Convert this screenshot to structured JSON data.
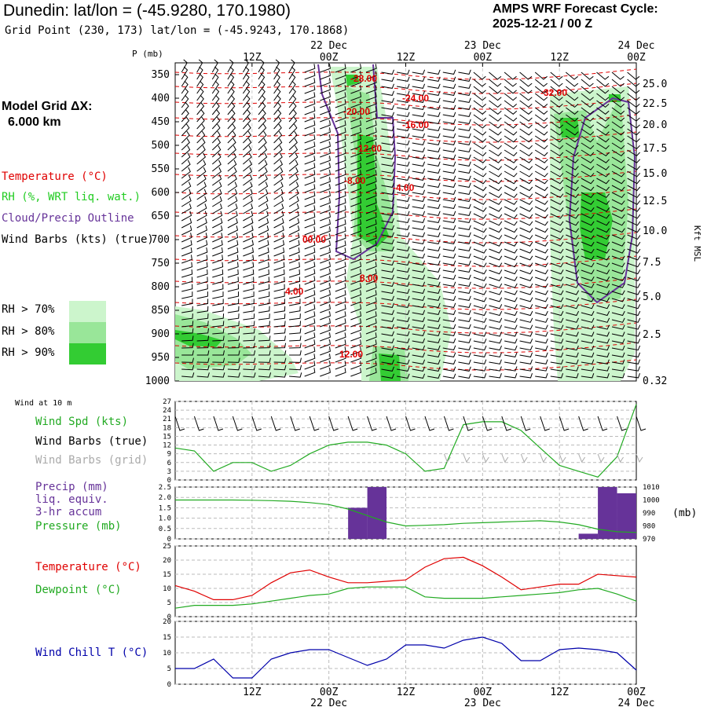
{
  "header": {
    "title": "Dunedin:  lat/lon = (-45.9280, 170.1980)",
    "grid_point": "Grid Point (230, 173) lat/lon = (-45.9243, 170.1868)",
    "cycle_label": "AMPS WRF Forecast Cycle:",
    "cycle_value": "2025-12-21 / 00  Z"
  },
  "side": {
    "model_grid_label": "Model Grid ΔX:",
    "model_grid_value": "6.000 km",
    "temperature_label": "Temperature (°C)",
    "rh_label": "RH (%, WRT liq. wat.)",
    "cloud_label": "Cloud/Precip Outline",
    "wind_label": "Wind Barbs (kts) (true)",
    "rh70": "RH > 70%",
    "rh80": "RH > 80%",
    "rh90": "RH > 90%"
  },
  "colors": {
    "temperature": "#e00000",
    "rh": "#22cc22",
    "cloud": "#663399",
    "rh70": "#ccf5cc",
    "rh80": "#99e699",
    "rh90": "#33cc33",
    "precip": "#663399",
    "pressure": "#22aa22",
    "dewpoint": "#22aa22",
    "windchill": "#0000aa",
    "grid_barbs": "#aaaaaa"
  },
  "time_axis": {
    "top_ticks": [
      "12Z",
      "00Z",
      "12Z",
      "00Z",
      "12Z",
      "00Z"
    ],
    "top_dates": [
      "22 Dec",
      "23 Dec",
      "24 Dec"
    ],
    "bottom_ticks": [
      "12Z",
      "00Z",
      "12Z",
      "00Z",
      "12Z",
      "00Z"
    ],
    "bottom_dates": [
      "22 Dec",
      "23 Dec",
      "24 Dec"
    ]
  },
  "panel1": {
    "p_label": "P (mb)",
    "p_ticks": [
      "350",
      "400",
      "450",
      "500",
      "550",
      "600",
      "650",
      "700",
      "750",
      "800",
      "850",
      "900",
      "950",
      "1000"
    ],
    "kft_ticks": [
      "25.0",
      "22.5",
      "20.0",
      "17.5",
      "15.0",
      "12.5",
      "10.0",
      "7.5",
      "5.0",
      "2.5",
      "0.32"
    ],
    "kft_label": "Kft MSL",
    "temp_labels": [
      "-28.00",
      "-24.00",
      "-32.00",
      "-20.00",
      "-16.00",
      "-12.00",
      "-8.00",
      "-4.00",
      "00.00",
      "8.00",
      "4.00",
      "12.00"
    ]
  },
  "panel2": {
    "header": "Wind at 10 m",
    "speed_label": "Wind Spd (kts)",
    "barbs_true_label": "Wind Barbs (true)",
    "barbs_grid_label": "Wind Barbs (grid)",
    "y_ticks": [
      "27",
      "24",
      "21",
      "18",
      "15",
      "12",
      "9",
      "6",
      "3",
      "0"
    ]
  },
  "panel3": {
    "precip_label": "Precip (mm)",
    "liq_label": "liq. equiv.",
    "accum_label": "3-hr accum",
    "pressure_label": "Pressure (mb)",
    "left_ticks": [
      "2.5",
      "2.0",
      "1.5",
      "1.0",
      "0.5",
      "0"
    ],
    "right_ticks": [
      "1010",
      "1000",
      "990",
      "980",
      "970"
    ],
    "right_unit": "(mb)"
  },
  "panel4": {
    "temp_label": "Temperature (°C)",
    "dew_label": "Dewpoint (°C)",
    "y_ticks": [
      "25",
      "20",
      "15",
      "10",
      "5",
      "0"
    ]
  },
  "panel5": {
    "chill_label": "Wind Chill T (°C)",
    "y_ticks": [
      "20",
      "15",
      "10",
      "5",
      "0"
    ]
  },
  "chart_data": [
    {
      "type": "line",
      "panel": "wind speed 10 m",
      "ylabel": "Wind Spd (kts)",
      "ylim": [
        0,
        27
      ],
      "x": [
        0,
        3,
        6,
        9,
        12,
        15,
        18,
        21,
        24,
        27,
        30,
        33,
        36,
        39,
        42,
        45,
        48,
        51,
        54,
        57,
        60,
        63,
        66,
        69,
        72
      ],
      "series": [
        {
          "name": "Wind Spd (kts)",
          "values": [
            11,
            10,
            3,
            6,
            6,
            3,
            5,
            9,
            12,
            13,
            13,
            12,
            9,
            3,
            4,
            19,
            20,
            20,
            17,
            11,
            5,
            3,
            1,
            8,
            26
          ]
        }
      ]
    },
    {
      "type": "bar",
      "panel": "precip 3-hr accum",
      "ylabel": "Precip (mm)",
      "ylim": [
        0,
        2.5
      ],
      "bars": [
        {
          "x0": 27,
          "x1": 30,
          "value": 1.5
        },
        {
          "x0": 30,
          "x1": 33,
          "value": 2.5
        },
        {
          "x0": 63,
          "x1": 66,
          "value": 0.25
        },
        {
          "x0": 66,
          "x1": 69,
          "value": 2.5
        },
        {
          "x0": 69,
          "x1": 72,
          "value": 2.2
        }
      ]
    },
    {
      "type": "line",
      "panel": "pressure",
      "ylabel": "Pressure (mb)",
      "ylim": [
        970,
        1010
      ],
      "x": [
        0,
        3,
        6,
        9,
        12,
        15,
        18,
        21,
        24,
        27,
        30,
        33,
        36,
        39,
        42,
        45,
        48,
        51,
        54,
        57,
        60,
        63,
        66,
        69,
        72
      ],
      "series": [
        {
          "name": "Pressure (mb)",
          "values": [
            1000,
            1000,
            1000,
            1000,
            999.8,
            999.5,
            999,
            998,
            996.5,
            993,
            988,
            983,
            980,
            980.5,
            981,
            982,
            982.5,
            983,
            983.5,
            984,
            983,
            981,
            977.5,
            975.5,
            975
          ]
        }
      ]
    },
    {
      "type": "line",
      "panel": "temperature/dewpoint",
      "ylim": [
        0,
        25
      ],
      "x": [
        0,
        3,
        6,
        9,
        12,
        15,
        18,
        21,
        24,
        27,
        30,
        33,
        36,
        39,
        42,
        45,
        48,
        51,
        54,
        57,
        60,
        63,
        66,
        69,
        72
      ],
      "series": [
        {
          "name": "Temperature (°C)",
          "values": [
            11,
            9,
            6,
            6,
            7.5,
            12,
            15.5,
            16.5,
            14,
            12,
            12,
            12.5,
            13,
            17.5,
            20.5,
            21,
            18,
            14,
            9.5,
            10.5,
            11.5,
            11.5,
            15,
            14.5,
            14
          ]
        },
        {
          "name": "Dewpoint (°C)",
          "values": [
            3,
            4,
            4,
            4,
            4.5,
            5.5,
            6.5,
            7.5,
            8,
            10,
            10.5,
            10.5,
            10.5,
            7,
            6.5,
            6.5,
            6.5,
            7,
            7.5,
            8,
            8.5,
            9.5,
            10,
            8,
            5.5
          ]
        }
      ]
    },
    {
      "type": "line",
      "panel": "wind chill",
      "ylabel": "Wind Chill T (°C)",
      "ylim": [
        0,
        20
      ],
      "x": [
        0,
        3,
        6,
        9,
        12,
        15,
        18,
        21,
        24,
        27,
        30,
        33,
        36,
        39,
        42,
        45,
        48,
        51,
        54,
        57,
        60,
        63,
        66,
        69,
        72
      ],
      "series": [
        {
          "name": "Wind Chill T (°C)",
          "values": [
            5,
            5,
            8,
            2,
            2,
            8,
            10,
            11,
            11,
            8.5,
            6,
            8,
            12.5,
            12.5,
            11.5,
            14,
            15,
            13,
            7.5,
            7.5,
            11,
            11.5,
            11,
            10,
            4.5
          ]
        }
      ]
    }
  ]
}
